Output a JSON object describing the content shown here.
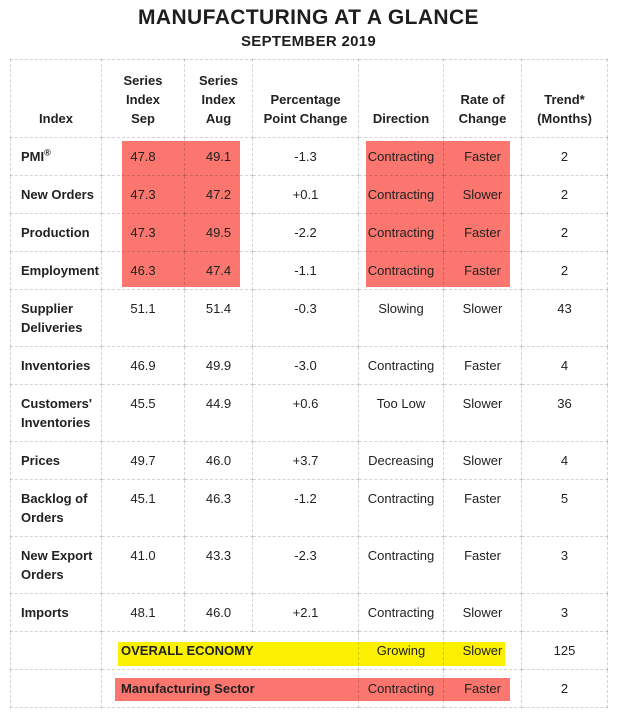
{
  "title": "MANUFACTURING AT A GLANCE",
  "subtitle": "SEPTEMBER 2019",
  "colors": {
    "highlight_red": "#FA766E",
    "highlight_yellow": "#FAF000",
    "grid_line": "#DDDDDD",
    "text": "#222222"
  },
  "table": {
    "headers": [
      "Index",
      "Series\nIndex\nSep",
      "Series\nIndex\nAug",
      "Percentage\nPoint Change",
      "Direction",
      "Rate of\nChange",
      "Trend*\n(Months)"
    ],
    "rows": [
      {
        "index": "PMI®",
        "sep": "47.8",
        "aug": "49.1",
        "change": "-1.3",
        "direction": "Contracting",
        "rate": "Faster",
        "trend": "2",
        "highlight": "red"
      },
      {
        "index": "New Orders",
        "sep": "47.3",
        "aug": "47.2",
        "change": "+0.1",
        "direction": "Contracting",
        "rate": "Slower",
        "trend": "2",
        "highlight": "red"
      },
      {
        "index": "Production",
        "sep": "47.3",
        "aug": "49.5",
        "change": "-2.2",
        "direction": "Contracting",
        "rate": "Faster",
        "trend": "2",
        "highlight": "red"
      },
      {
        "index": "Employment",
        "sep": "46.3",
        "aug": "47.4",
        "change": "-1.1",
        "direction": "Contracting",
        "rate": "Faster",
        "trend": "2",
        "highlight": "red"
      },
      {
        "index": "Supplier Deliveries",
        "sep": "51.1",
        "aug": "51.4",
        "change": "-0.3",
        "direction": "Slowing",
        "rate": "Slower",
        "trend": "43",
        "tall": true
      },
      {
        "index": "Inventories",
        "sep": "46.9",
        "aug": "49.9",
        "change": "-3.0",
        "direction": "Contracting",
        "rate": "Faster",
        "trend": "4"
      },
      {
        "index": "Customers' Inventories",
        "sep": "45.5",
        "aug": "44.9",
        "change": "+0.6",
        "direction": "Too Low",
        "rate": "Slower",
        "trend": "36",
        "tall": true
      },
      {
        "index": "Prices",
        "sep": "49.7",
        "aug": "46.0",
        "change": "+3.7",
        "direction": "Decreasing",
        "rate": "Slower",
        "trend": "4"
      },
      {
        "index": "Backlog of Orders",
        "sep": "45.1",
        "aug": "46.3",
        "change": "-1.2",
        "direction": "Contracting",
        "rate": "Faster",
        "trend": "5",
        "tall": true
      },
      {
        "index": "New Export Orders",
        "sep": "41.0",
        "aug": "43.3",
        "change": "-2.3",
        "direction": "Contracting",
        "rate": "Faster",
        "trend": "3",
        "tall": true
      },
      {
        "index": "Imports",
        "sep": "48.1",
        "aug": "46.0",
        "change": "+2.1",
        "direction": "Contracting",
        "rate": "Slower",
        "trend": "3"
      },
      {
        "type": "summary",
        "label": "OVERALL ECONOMY",
        "direction": "Growing",
        "rate": "Slower",
        "trend": "125",
        "highlight": "yellow"
      },
      {
        "type": "summary",
        "label": "Manufacturing Sector",
        "direction": "Contracting",
        "rate": "Faster",
        "trend": "2",
        "highlight": "red"
      }
    ]
  },
  "chart_data": {
    "type": "table",
    "title": "MANUFACTURING AT A GLANCE",
    "subtitle": "SEPTEMBER 2019",
    "columns": [
      "Index",
      "Series Index Sep",
      "Series Index Aug",
      "Percentage Point Change",
      "Direction",
      "Rate of Change",
      "Trend* (Months)"
    ],
    "rows": [
      [
        "PMI®",
        47.8,
        49.1,
        -1.3,
        "Contracting",
        "Faster",
        2
      ],
      [
        "New Orders",
        47.3,
        47.2,
        0.1,
        "Contracting",
        "Slower",
        2
      ],
      [
        "Production",
        47.3,
        49.5,
        -2.2,
        "Contracting",
        "Faster",
        2
      ],
      [
        "Employment",
        46.3,
        47.4,
        -1.1,
        "Contracting",
        "Faster",
        2
      ],
      [
        "Supplier Deliveries",
        51.1,
        51.4,
        -0.3,
        "Slowing",
        "Slower",
        43
      ],
      [
        "Inventories",
        46.9,
        49.9,
        -3.0,
        "Contracting",
        "Faster",
        4
      ],
      [
        "Customers' Inventories",
        45.5,
        44.9,
        0.6,
        "Too Low",
        "Slower",
        36
      ],
      [
        "Prices",
        49.7,
        46.0,
        3.7,
        "Decreasing",
        "Slower",
        4
      ],
      [
        "Backlog of Orders",
        45.1,
        46.3,
        -1.2,
        "Contracting",
        "Faster",
        5
      ],
      [
        "New Export Orders",
        41.0,
        43.3,
        -2.3,
        "Contracting",
        "Faster",
        3
      ],
      [
        "Imports",
        48.1,
        46.0,
        2.1,
        "Contracting",
        "Slower",
        3
      ],
      [
        "OVERALL ECONOMY",
        null,
        null,
        null,
        "Growing",
        "Slower",
        125
      ],
      [
        "Manufacturing Sector",
        null,
        null,
        null,
        "Contracting",
        "Faster",
        2
      ]
    ],
    "highlights": [
      {
        "color": "#FA766E",
        "cells": "rows PMI–Employment: Series Index Sep & Aug"
      },
      {
        "color": "#FA766E",
        "cells": "rows PMI–Employment: Direction & Rate of Change"
      },
      {
        "color": "#FAF000",
        "cells": "OVERALL ECONOMY row: label, Direction, Rate of Change"
      },
      {
        "color": "#FA766E",
        "cells": "Manufacturing Sector row: label, Direction, Rate of Change"
      }
    ],
    "grid": true,
    "legend": "none"
  }
}
